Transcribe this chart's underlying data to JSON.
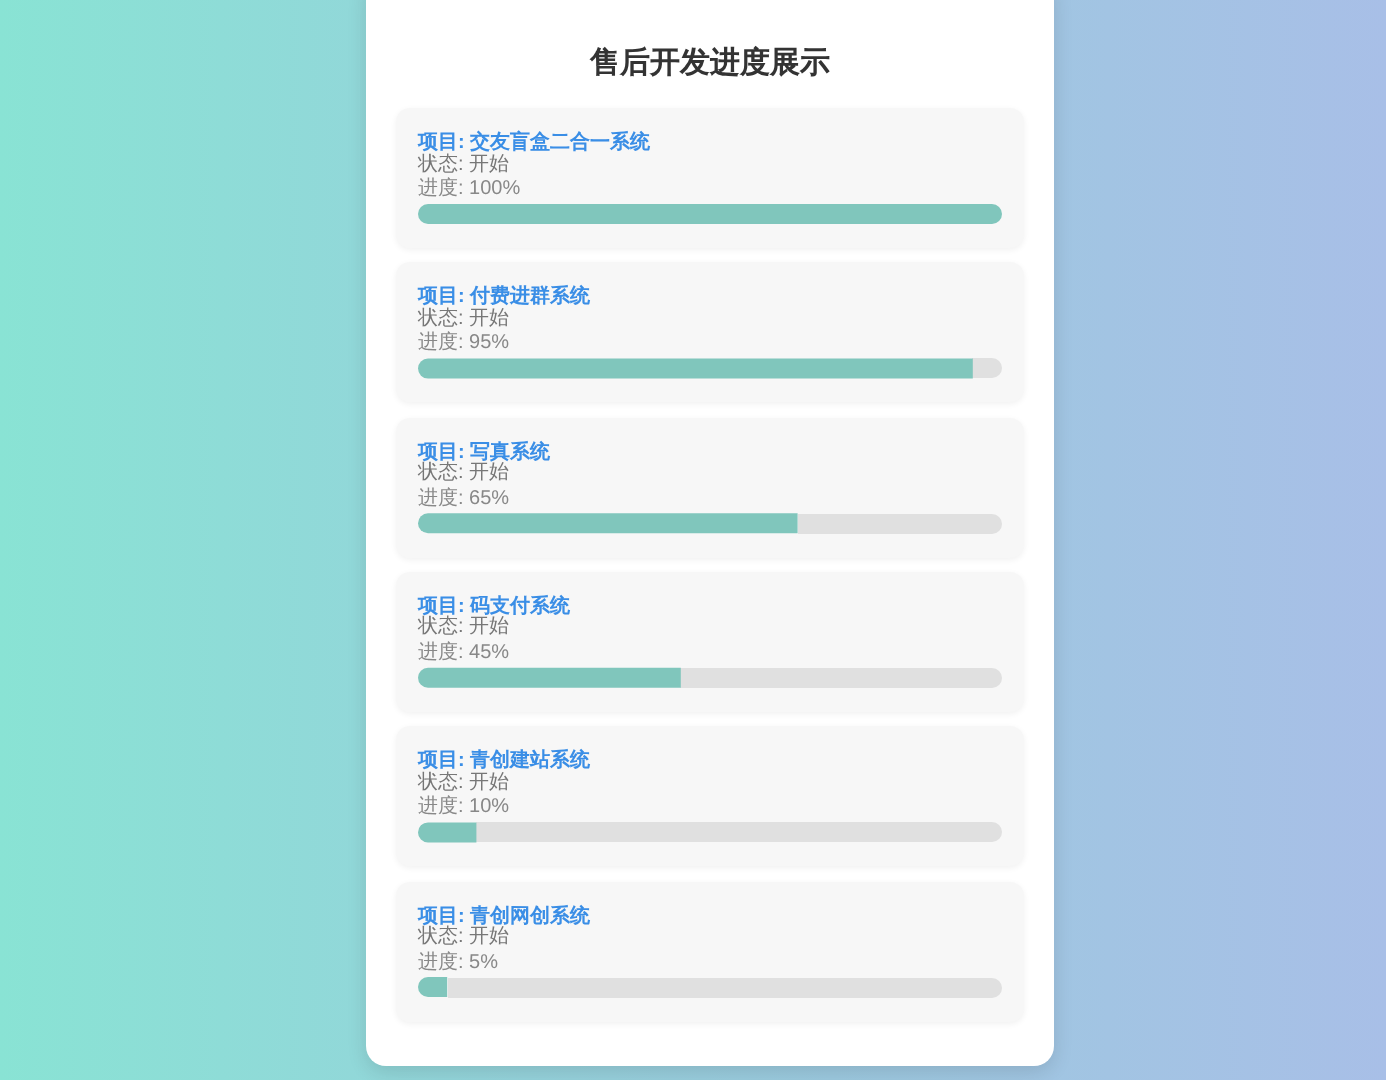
{
  "chart_data": {
    "type": "bar",
    "orientation": "horizontal",
    "title": "售后开发进度展示",
    "categories": [
      "项目: 交友盲盒二合一系统",
      "项目: 付费进群系统",
      "项目: 写真系统",
      "项目: 码支付系统",
      "项目: 青创建站系统",
      "项目: 青创网创系统"
    ],
    "values": [
      100,
      95,
      65,
      45,
      10,
      5
    ],
    "value_labels": [
      "进度: 100%",
      "进度: 95%",
      "进度: 65%",
      "进度: 45%",
      "进度: 10%",
      "进度: 5%"
    ],
    "color": "#80c6bc",
    "tick_labels": false,
    "annotations": [
      "状态: 开始",
      "状态: 开始",
      "状态: 开始",
      "状态: 开始",
      "状态: 开始",
      "状态: 开始"
    ]
  }
}
